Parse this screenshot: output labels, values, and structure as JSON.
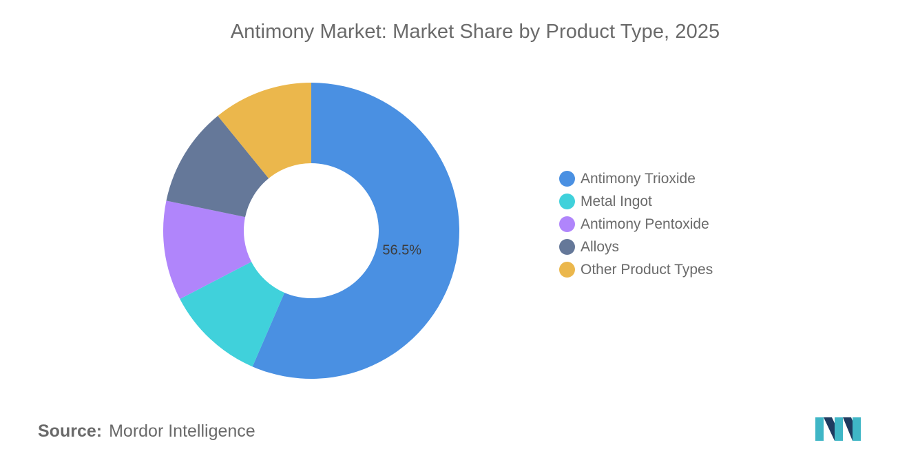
{
  "title": "Antimony Market: Market Share by Product Type, 2025",
  "source": {
    "prefix": "Source:",
    "name": "Mordor Intelligence"
  },
  "chart_data": {
    "type": "pie",
    "variant": "donut",
    "title": "Antimony Market: Market Share by Product Type, 2025",
    "unit": "%",
    "legend_position": "right",
    "slices": [
      {
        "name": "Antimony Trioxide",
        "value": 56.5,
        "label": "56.5%",
        "color": "#4a90e2"
      },
      {
        "name": "Metal Ingot",
        "value": 10.875,
        "label": "",
        "color": "#40d1db"
      },
      {
        "name": "Antimony Pentoxide",
        "value": 10.875,
        "label": "",
        "color": "#b085fb"
      },
      {
        "name": "Alloys",
        "value": 10.875,
        "label": "",
        "color": "#657899"
      },
      {
        "name": "Other Product Types",
        "value": 10.875,
        "label": "",
        "color": "#ebb74c"
      }
    ]
  },
  "legend": [
    {
      "label": "Antimony Trioxide",
      "color": "#4a90e2"
    },
    {
      "label": "Metal Ingot",
      "color": "#40d1db"
    },
    {
      "label": "Antimony Pentoxide",
      "color": "#b085fb"
    },
    {
      "label": "Alloys",
      "color": "#657899"
    },
    {
      "label": "Other Product Types",
      "color": "#ebb74c"
    }
  ],
  "logo": {
    "name": "mordor-intelligence-logo-icon",
    "colors": [
      "#1f3a5f",
      "#3fb6c6"
    ]
  }
}
